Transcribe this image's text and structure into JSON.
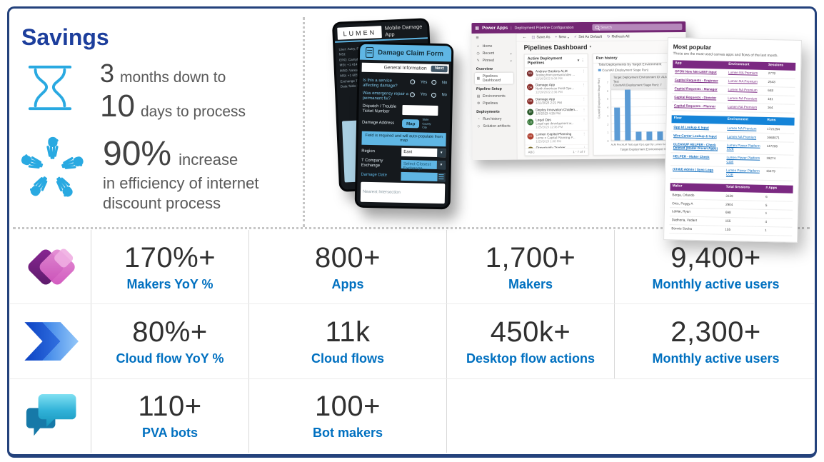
{
  "slide": {
    "title": "Savings",
    "border_color": "#24427c",
    "title_color": "#1c3e9c",
    "icon_color": "#29a9e1",
    "time_stat": {
      "num1": "3",
      "text1": "months down to",
      "num2": "10",
      "text2": "days to process"
    },
    "efficiency_stat": {
      "num": "90%",
      "text": "increase",
      "line2": "in efficiency of internet",
      "line3": "discount process"
    }
  },
  "phone_back": {
    "logo": "LUMEN",
    "title": "Mobile Damage App",
    "info_rows": [
      "User: Autry, Robert",
      "MSt:",
      "ERO: Campbell",
      "MSt: +1 414",
      "MRO: Vares, Ty",
      "MSt: +1 605",
      "Exchange Table Loads",
      "Data Table Loads"
    ]
  },
  "phone_front": {
    "title": "Damage Claim Form",
    "section": "General Information",
    "next_label": "Next",
    "q1": "Is this a service affecting damage?",
    "q2": "Was emergency repair a permanent fix?",
    "yes": "Yes",
    "no": "No",
    "dispatch_label": "Dispatch / Trouble Ticket Number",
    "address_label": "Damage Address",
    "map_label": "Map",
    "hint1": "State",
    "hint2": "County",
    "hint3": "City",
    "banner": "Field is required and will auto-populate from map",
    "region_label": "Region",
    "region_value": "East",
    "exchange_label": "T Company Exchange",
    "exchange_value": "Select Closest Exchange",
    "date_label": "Damage Date",
    "intersection_placeholder": "Nearest Intersection"
  },
  "dashboard": {
    "app_name": "Power Apps",
    "app_subtitle": "Deployment Pipeline Configuration",
    "search_placeholder": "Search",
    "page_title": "Pipelines Dashboard",
    "sidebar": {
      "items": [
        {
          "type": "item",
          "icon": "home-icon",
          "label": "Home"
        },
        {
          "type": "item",
          "icon": "recent-icon",
          "label": "Recent",
          "chevron": true
        },
        {
          "type": "item",
          "icon": "pinned-icon",
          "label": "Pinned",
          "chevron": true
        },
        {
          "type": "section",
          "label": "Overview"
        },
        {
          "type": "item",
          "icon": "dashboard-icon",
          "label": "Pipelines Dashboard",
          "selected": true
        },
        {
          "type": "section",
          "label": "Pipeline Setup"
        },
        {
          "type": "item",
          "icon": "environments-icon",
          "label": "Environments"
        },
        {
          "type": "item",
          "icon": "pipelines-icon",
          "label": "Pipelines"
        },
        {
          "type": "section",
          "label": "Deployments"
        },
        {
          "type": "item",
          "icon": "run-history-icon",
          "label": "Run history"
        },
        {
          "type": "item",
          "icon": "solution-icon",
          "label": "Solution artifacts"
        }
      ]
    },
    "toolbar": [
      {
        "icon": "save-icon",
        "label": "Save As"
      },
      {
        "icon": "plus-icon",
        "label": "New",
        "chevron": true
      },
      {
        "icon": "check-icon",
        "label": "Set As Default"
      },
      {
        "icon": "refresh-icon",
        "label": "Refresh All"
      }
    ],
    "pipelines_panel": {
      "title": "Active Deployment Pipelines",
      "items": [
        {
          "initials": "AG",
          "color": "#7d3030",
          "lines": [
            "Andrew Gaskins ALM",
            "Testing from personal dev ...",
            "12/16/2022 5:08 PM"
          ]
        },
        {
          "initials": "DA",
          "color": "#8a2f2b",
          "lines": [
            "Damage App",
            "North American Field Ope...",
            "12/19/2022 2:36 PM"
          ]
        },
        {
          "initials": "DA",
          "color": "#8a2f2b",
          "lines": [
            "Damage App",
            "1/11/2023 2:21 PM"
          ]
        },
        {
          "initials": "DI",
          "color": "#2e5c2e",
          "lines": [
            "Deploy Innovation Challen...",
            "1/5/2023 4:25 PM"
          ]
        },
        {
          "initials": "LO",
          "color": "#3a7a3c",
          "lines": [
            "Legal Ops",
            "Legal ops development w...",
            "1/25/2023 12:36 PM"
          ]
        },
        {
          "initials": "LC",
          "color": "#b04232",
          "lines": [
            "Lumen Capital Planning",
            "Lume n Capital Planning P...",
            "1/25/2023 1:08 PM"
          ]
        },
        {
          "initials": "OT",
          "color": "#7a6a28",
          "lines": [
            "Opportunity Tracker"
          ]
        }
      ],
      "footer_left": "ABC",
      "footer_right": "1 - 7 of 7"
    },
    "run_history": {
      "title": "Run history",
      "tooltip_line1": "Target Deployment Environment ID: ALM Test",
      "tooltip_line2": "CountAll (Deployment Stage Run): 7"
    }
  },
  "chart_data": {
    "type": "bar",
    "title": "Total Deployments by Target Environment",
    "categories": [
      "ALM Prod",
      "ALM Test",
      "Legal Ops...",
      "Legal Ops...",
      "Lumen Cap...",
      "Lumen Cap..."
    ],
    "values": [
      4,
      7,
      1,
      1,
      1,
      1
    ],
    "xlabel": "Target Deployment Environment ID",
    "ylabel": "CountAll (Deployment Stage Run)",
    "ylim": [
      0,
      7
    ],
    "grid": true,
    "legend": [
      "CountAll (Deployment Stage Run)"
    ],
    "legend_position": "top",
    "bar_color": "#5b9bd5"
  },
  "most_popular": {
    "title": "Most popular",
    "subtitle": "These are the most-used canvas apps and flows of the last month.",
    "app_table": {
      "header_bg": "#7b2982",
      "link_color": "#7b2982",
      "columns": [
        "App",
        "Environment",
        "Sessions"
      ],
      "rows": [
        [
          "GPON New Net-LEEF Input",
          "Lumen NA Premium",
          "2778"
        ],
        [
          "Capital Requests - Engineer",
          "Lumen NA Premium",
          "2543"
        ],
        [
          "Capital Requests - Manager",
          "Lumen NA Premium",
          "648"
        ],
        [
          "Capital Requests - Director",
          "Lumen NA Premium",
          "181"
        ],
        [
          "Capital Requests - Planner",
          "Lumen NA Premium",
          "164"
        ]
      ]
    },
    "flow_table": {
      "header_bg": "#1584d8",
      "link_color": "#0f6cbd",
      "columns": [
        "Flow",
        "Environment",
        "Runs"
      ],
      "rows": [
        [
          "Opp Id Lookup & Input",
          "Lumen NA Premium",
          "1721294"
        ],
        [
          "Wire Center Lookup & Input",
          "Lumen NA Premium",
          "1668071"
        ],
        [
          "CLEANUP HELPER - Check Deleted (Model Driven Apps)",
          "Lumen Power Platform COE",
          "147206"
        ],
        [
          "HELPER - Maker Check",
          "Lumen Power Platform COE",
          "19274"
        ],
        [
          "(Child) Admin | Sync Logs",
          "Lumen Power Platform COE",
          "16479"
        ]
      ]
    },
    "maker_table": {
      "header_bg": "#7b2982",
      "link_color": null,
      "columns": [
        "Maker",
        "Total Sessions",
        "# Apps"
      ],
      "rows": [
        [
          "Barga, Orlando",
          "3139",
          "6"
        ],
        [
          "Ortiz, Peggy A",
          "2904",
          "5"
        ],
        [
          "LaMar, Ryan",
          "698",
          "1"
        ],
        [
          "Dadhoria, Vedant",
          "155",
          "4"
        ],
        [
          "Bonnie Socha",
          "155",
          "1"
        ]
      ]
    }
  },
  "stats": {
    "number_color": "#303030",
    "label_color": "#0070c0",
    "rows": [
      {
        "icon": "power-apps",
        "cells": [
          {
            "value": "170%+",
            "label": "Makers YoY %"
          },
          {
            "value": "800+",
            "label": "Apps"
          },
          {
            "value": "1,700+",
            "label": "Makers"
          },
          {
            "value": "9,400+",
            "label": "Monthly active users"
          }
        ]
      },
      {
        "icon": "power-automate",
        "cells": [
          {
            "value": "80%+",
            "label": "Cloud flow YoY %"
          },
          {
            "value": "11k",
            "label": "Cloud flows"
          },
          {
            "value": "450k+",
            "label": "Desktop flow actions"
          },
          {
            "value": "2,300+",
            "label": "Monthly active users"
          }
        ]
      },
      {
        "icon": "power-virtual-agents",
        "cells": [
          {
            "value": "110+",
            "label": "PVA bots"
          },
          {
            "value": "100+",
            "label": "Bot makers"
          }
        ]
      }
    ]
  },
  "icons": {
    "grid-icon": "▦",
    "menu-icon": "≡",
    "home-icon": "⌂",
    "recent-icon": "◷",
    "pinned-icon": "✎",
    "dashboard-icon": "▦",
    "environments-icon": "▤",
    "pipelines-icon": "⚙",
    "run-history-icon": "◔",
    "solution-icon": "◇",
    "chevron-down": "▾",
    "ellipsis-v": "⋮",
    "back-icon": "←",
    "save-icon": "◫",
    "plus-icon": "+",
    "check-icon": "✓",
    "refresh-icon": "↻"
  }
}
